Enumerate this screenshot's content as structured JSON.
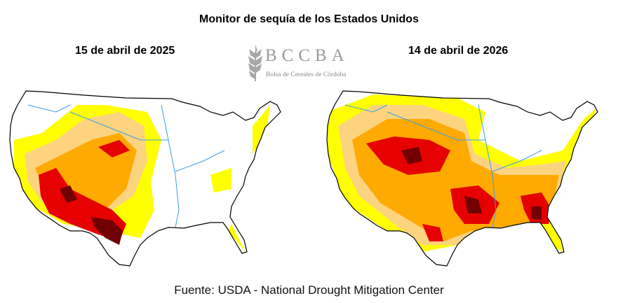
{
  "title": "Monitor de sequía de los Estados Unidos",
  "maps": [
    {
      "date": "15 de abril de 2025"
    },
    {
      "date": "14 de abril de 2026"
    }
  ],
  "logo": {
    "letters": "BCCBA",
    "subtitle": "Bolsa de Cereales de Córdoba"
  },
  "source": "Fuente: USDA - National Drought Mitigation Center",
  "legend_colors": {
    "D0": "#ffff00",
    "D1": "#fcd37f",
    "D2": "#ffaa00",
    "D3": "#e60000",
    "D4": "#730000",
    "water": "#3a9fe8"
  }
}
